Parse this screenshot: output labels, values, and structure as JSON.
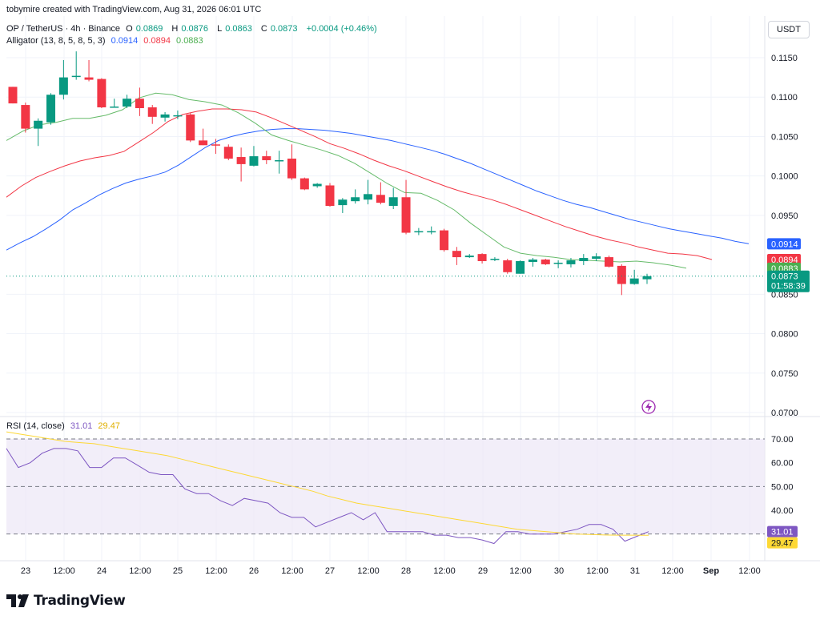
{
  "header": {
    "credit": "tobymire created with TradingView.com, Aug 31, 2026 06:01 UTC"
  },
  "legend": {
    "symbol": "OP / TetherUS · 4h · Binance",
    "open_label": "O",
    "open": "0.0869",
    "high_label": "H",
    "high": "0.0876",
    "low_label": "L",
    "low": "0.0863",
    "close_label": "C",
    "close": "0.0873",
    "change": "+0.0004 (+0.46%)"
  },
  "alligator": {
    "label": "Alligator (13, 8, 5, 8, 5, 3)",
    "jaw": "0.0914",
    "teeth": "0.0894",
    "lips": "0.0883"
  },
  "rsi": {
    "label": "RSI (14, close)",
    "value": "31.01",
    "ma": "29.47"
  },
  "currency_button": "USDT",
  "colors": {
    "up": "#089981",
    "down": "#f23645",
    "jaw": "#2962ff",
    "teeth": "#f23645",
    "lips": "#66bb6a",
    "rsi": "#7e57c2",
    "rsi_ma": "#fdd835",
    "rsi_band": "#ede7f6"
  },
  "chart_data": [
    {
      "type": "candlestick",
      "title": "OP / TetherUS · 4h · Binance",
      "ylim": [
        0.0695,
        0.1185
      ],
      "y_ticks": [
        "0.1150",
        "0.1100",
        "0.1050",
        "0.1000",
        "0.0950",
        "0.0850",
        "0.0800",
        "0.0750",
        "0.0700"
      ],
      "y_tick_values": [
        0.115,
        0.11,
        0.105,
        0.1,
        0.095,
        0.085,
        0.08,
        0.075,
        0.07
      ],
      "x_labels": [
        "23",
        "12:00",
        "24",
        "12:00",
        "25",
        "12:00",
        "26",
        "12:00",
        "27",
        "12:00",
        "28",
        "12:00",
        "29",
        "12:00",
        "30",
        "12:00",
        "31",
        "12:00",
        "Sep",
        "12:00"
      ],
      "price_label": {
        "value": "0.0873",
        "countdown": "01:58:39"
      },
      "candles": [
        {
          "o": 0.1113,
          "h": 0.1113,
          "l": 0.1092,
          "c": 0.1092
        },
        {
          "o": 0.109,
          "h": 0.1093,
          "l": 0.1055,
          "c": 0.106
        },
        {
          "o": 0.106,
          "h": 0.1073,
          "l": 0.1038,
          "c": 0.107
        },
        {
          "o": 0.1068,
          "h": 0.1105,
          "l": 0.1065,
          "c": 0.1103
        },
        {
          "o": 0.1103,
          "h": 0.1147,
          "l": 0.1097,
          "c": 0.1125
        },
        {
          "o": 0.1126,
          "h": 0.1158,
          "l": 0.1122,
          "c": 0.1127
        },
        {
          "o": 0.1125,
          "h": 0.1147,
          "l": 0.112,
          "c": 0.1122
        },
        {
          "o": 0.1123,
          "h": 0.1124,
          "l": 0.1086,
          "c": 0.1087
        },
        {
          "o": 0.1088,
          "h": 0.1098,
          "l": 0.1087,
          "c": 0.1088
        },
        {
          "o": 0.1088,
          "h": 0.1103,
          "l": 0.1086,
          "c": 0.1098
        },
        {
          "o": 0.1098,
          "h": 0.1112,
          "l": 0.1076,
          "c": 0.1086
        },
        {
          "o": 0.1087,
          "h": 0.109,
          "l": 0.1066,
          "c": 0.1075
        },
        {
          "o": 0.1074,
          "h": 0.1081,
          "l": 0.1069,
          "c": 0.1078
        },
        {
          "o": 0.1076,
          "h": 0.1083,
          "l": 0.1072,
          "c": 0.1077
        },
        {
          "o": 0.1078,
          "h": 0.108,
          "l": 0.1043,
          "c": 0.1045
        },
        {
          "o": 0.1045,
          "h": 0.106,
          "l": 0.1039,
          "c": 0.1039
        },
        {
          "o": 0.104,
          "h": 0.1047,
          "l": 0.1028,
          "c": 0.1039
        },
        {
          "o": 0.1037,
          "h": 0.104,
          "l": 0.102,
          "c": 0.1022
        },
        {
          "o": 0.1024,
          "h": 0.1036,
          "l": 0.0993,
          "c": 0.1015
        },
        {
          "o": 0.1013,
          "h": 0.1038,
          "l": 0.1012,
          "c": 0.1025
        },
        {
          "o": 0.1025,
          "h": 0.1032,
          "l": 0.1015,
          "c": 0.102
        },
        {
          "o": 0.102,
          "h": 0.1032,
          "l": 0.1003,
          "c": 0.102
        },
        {
          "o": 0.1022,
          "h": 0.104,
          "l": 0.0995,
          "c": 0.0997
        },
        {
          "o": 0.0997,
          "h": 0.0998,
          "l": 0.0982,
          "c": 0.0983
        },
        {
          "o": 0.0987,
          "h": 0.0991,
          "l": 0.0985,
          "c": 0.099
        },
        {
          "o": 0.0988,
          "h": 0.0991,
          "l": 0.0961,
          "c": 0.0962
        },
        {
          "o": 0.0963,
          "h": 0.0972,
          "l": 0.0953,
          "c": 0.097
        },
        {
          "o": 0.0968,
          "h": 0.0983,
          "l": 0.0965,
          "c": 0.0973
        },
        {
          "o": 0.097,
          "h": 0.0995,
          "l": 0.0964,
          "c": 0.0977
        },
        {
          "o": 0.0976,
          "h": 0.0992,
          "l": 0.0964,
          "c": 0.0966
        },
        {
          "o": 0.0962,
          "h": 0.0985,
          "l": 0.0958,
          "c": 0.0973
        },
        {
          "o": 0.0973,
          "h": 0.0995,
          "l": 0.0926,
          "c": 0.0928
        },
        {
          "o": 0.093,
          "h": 0.0934,
          "l": 0.0925,
          "c": 0.093
        },
        {
          "o": 0.093,
          "h": 0.0936,
          "l": 0.0926,
          "c": 0.093
        },
        {
          "o": 0.0931,
          "h": 0.0933,
          "l": 0.0904,
          "c": 0.0906
        },
        {
          "o": 0.0905,
          "h": 0.091,
          "l": 0.0887,
          "c": 0.0897
        },
        {
          "o": 0.0897,
          "h": 0.0901,
          "l": 0.0896,
          "c": 0.0899
        },
        {
          "o": 0.0901,
          "h": 0.0902,
          "l": 0.0889,
          "c": 0.0892
        },
        {
          "o": 0.0894,
          "h": 0.0897,
          "l": 0.0892,
          "c": 0.0895
        },
        {
          "o": 0.0893,
          "h": 0.0895,
          "l": 0.0876,
          "c": 0.0878
        },
        {
          "o": 0.0876,
          "h": 0.0893,
          "l": 0.0876,
          "c": 0.0892
        },
        {
          "o": 0.0891,
          "h": 0.0896,
          "l": 0.0885,
          "c": 0.0894
        },
        {
          "o": 0.0894,
          "h": 0.0895,
          "l": 0.0887,
          "c": 0.0888
        },
        {
          "o": 0.0889,
          "h": 0.0893,
          "l": 0.0883,
          "c": 0.089
        },
        {
          "o": 0.0888,
          "h": 0.0896,
          "l": 0.0884,
          "c": 0.0893
        },
        {
          "o": 0.0892,
          "h": 0.0901,
          "l": 0.0887,
          "c": 0.0896
        },
        {
          "o": 0.0895,
          "h": 0.0902,
          "l": 0.0892,
          "c": 0.0898
        },
        {
          "o": 0.0897,
          "h": 0.0899,
          "l": 0.0884,
          "c": 0.0885
        },
        {
          "o": 0.0886,
          "h": 0.0888,
          "l": 0.0849,
          "c": 0.0863
        },
        {
          "o": 0.0863,
          "h": 0.0881,
          "l": 0.0862,
          "c": 0.087
        },
        {
          "o": 0.0869,
          "h": 0.0876,
          "l": 0.0863,
          "c": 0.0873
        }
      ],
      "series": [
        {
          "name": "jaw",
          "values": [
            0.0906,
            0.0915,
            0.0923,
            0.0933,
            0.0944,
            0.0957,
            0.0966,
            0.0976,
            0.0984,
            0.0991,
            0.0996,
            0.1,
            0.1005,
            0.1014,
            0.1025,
            0.1036,
            0.1045,
            0.105,
            0.1054,
            0.1057,
            0.1059,
            0.106,
            0.106,
            0.1059,
            0.1058,
            0.1056,
            0.1054,
            0.1051,
            0.1048,
            0.1045,
            0.1041,
            0.1037,
            0.1033,
            0.1028,
            0.1022,
            0.1016,
            0.1009,
            0.1002,
            0.0995,
            0.0988,
            0.0981,
            0.0975,
            0.0969,
            0.0964,
            0.096,
            0.0955,
            0.095,
            0.0945,
            0.0941,
            0.0937,
            0.0933,
            0.093,
            0.0927,
            0.0924,
            0.0921,
            0.0917,
            0.0914
          ]
        },
        {
          "name": "teeth",
          "values": [
            0.0973,
            0.0987,
            0.0998,
            0.1006,
            0.1013,
            0.1019,
            0.1023,
            0.1026,
            0.1031,
            0.1043,
            0.1055,
            0.1069,
            0.1078,
            0.1082,
            0.1085,
            0.1085,
            0.1084,
            0.1081,
            0.1074,
            0.1066,
            0.1058,
            0.105,
            0.1041,
            0.1035,
            0.1028,
            0.102,
            0.1013,
            0.1007,
            0.1,
            0.0993,
            0.0986,
            0.098,
            0.0975,
            0.097,
            0.0964,
            0.0957,
            0.095,
            0.0943,
            0.0936,
            0.093,
            0.0924,
            0.0919,
            0.0915,
            0.091,
            0.0906,
            0.0902,
            0.0901,
            0.0899,
            0.0894
          ]
        },
        {
          "name": "lips",
          "values": [
            0.1045,
            0.1057,
            0.1065,
            0.1068,
            0.1073,
            0.1073,
            0.1077,
            0.1084,
            0.1099,
            0.1105,
            0.1103,
            0.1097,
            0.1094,
            0.109,
            0.108,
            0.1067,
            0.1052,
            0.1045,
            0.1039,
            0.1033,
            0.1026,
            0.1016,
            0.1003,
            0.099,
            0.0979,
            0.0978,
            0.0969,
            0.0957,
            0.094,
            0.0925,
            0.091,
            0.0902,
            0.0899,
            0.0897,
            0.0894,
            0.0893,
            0.0892,
            0.0891,
            0.0892,
            0.089,
            0.0887,
            0.0883
          ]
        }
      ]
    },
    {
      "type": "line",
      "title": "RSI (14, close)",
      "ylim": [
        20,
        78
      ],
      "y_ticks": [
        "70.00",
        "60.00",
        "50.00",
        "40.00"
      ],
      "y_tick_values": [
        70,
        60,
        50,
        40
      ],
      "band": [
        30,
        70
      ],
      "series": [
        {
          "name": "RSI",
          "values": [
            66,
            58,
            60,
            64,
            66,
            66,
            65,
            58,
            58,
            62,
            62,
            59,
            56,
            55,
            55,
            49,
            47,
            47,
            44,
            42,
            45,
            44,
            43,
            39,
            37,
            37,
            33,
            35,
            37,
            39,
            36,
            39,
            31,
            31,
            31,
            31,
            29.5,
            29.5,
            28.5,
            28.5,
            27.5,
            26,
            31,
            31,
            30,
            30,
            30,
            31,
            32,
            34,
            34,
            32,
            27,
            29,
            31.01
          ]
        },
        {
          "name": "RSI MA",
          "values": [
            73,
            72,
            71,
            70,
            69,
            68.5,
            68,
            67,
            66,
            65,
            64,
            63,
            61.5,
            60,
            58.5,
            57,
            55.5,
            54,
            52.5,
            51,
            49.5,
            48,
            46,
            44.5,
            43,
            42,
            41,
            40,
            39,
            38,
            37,
            36,
            35,
            34,
            33,
            32,
            31.5,
            31,
            30.5,
            30,
            29.8,
            29.6,
            29.5,
            29.5,
            29.47
          ]
        }
      ]
    }
  ],
  "logo": {
    "text": "TradingView"
  }
}
